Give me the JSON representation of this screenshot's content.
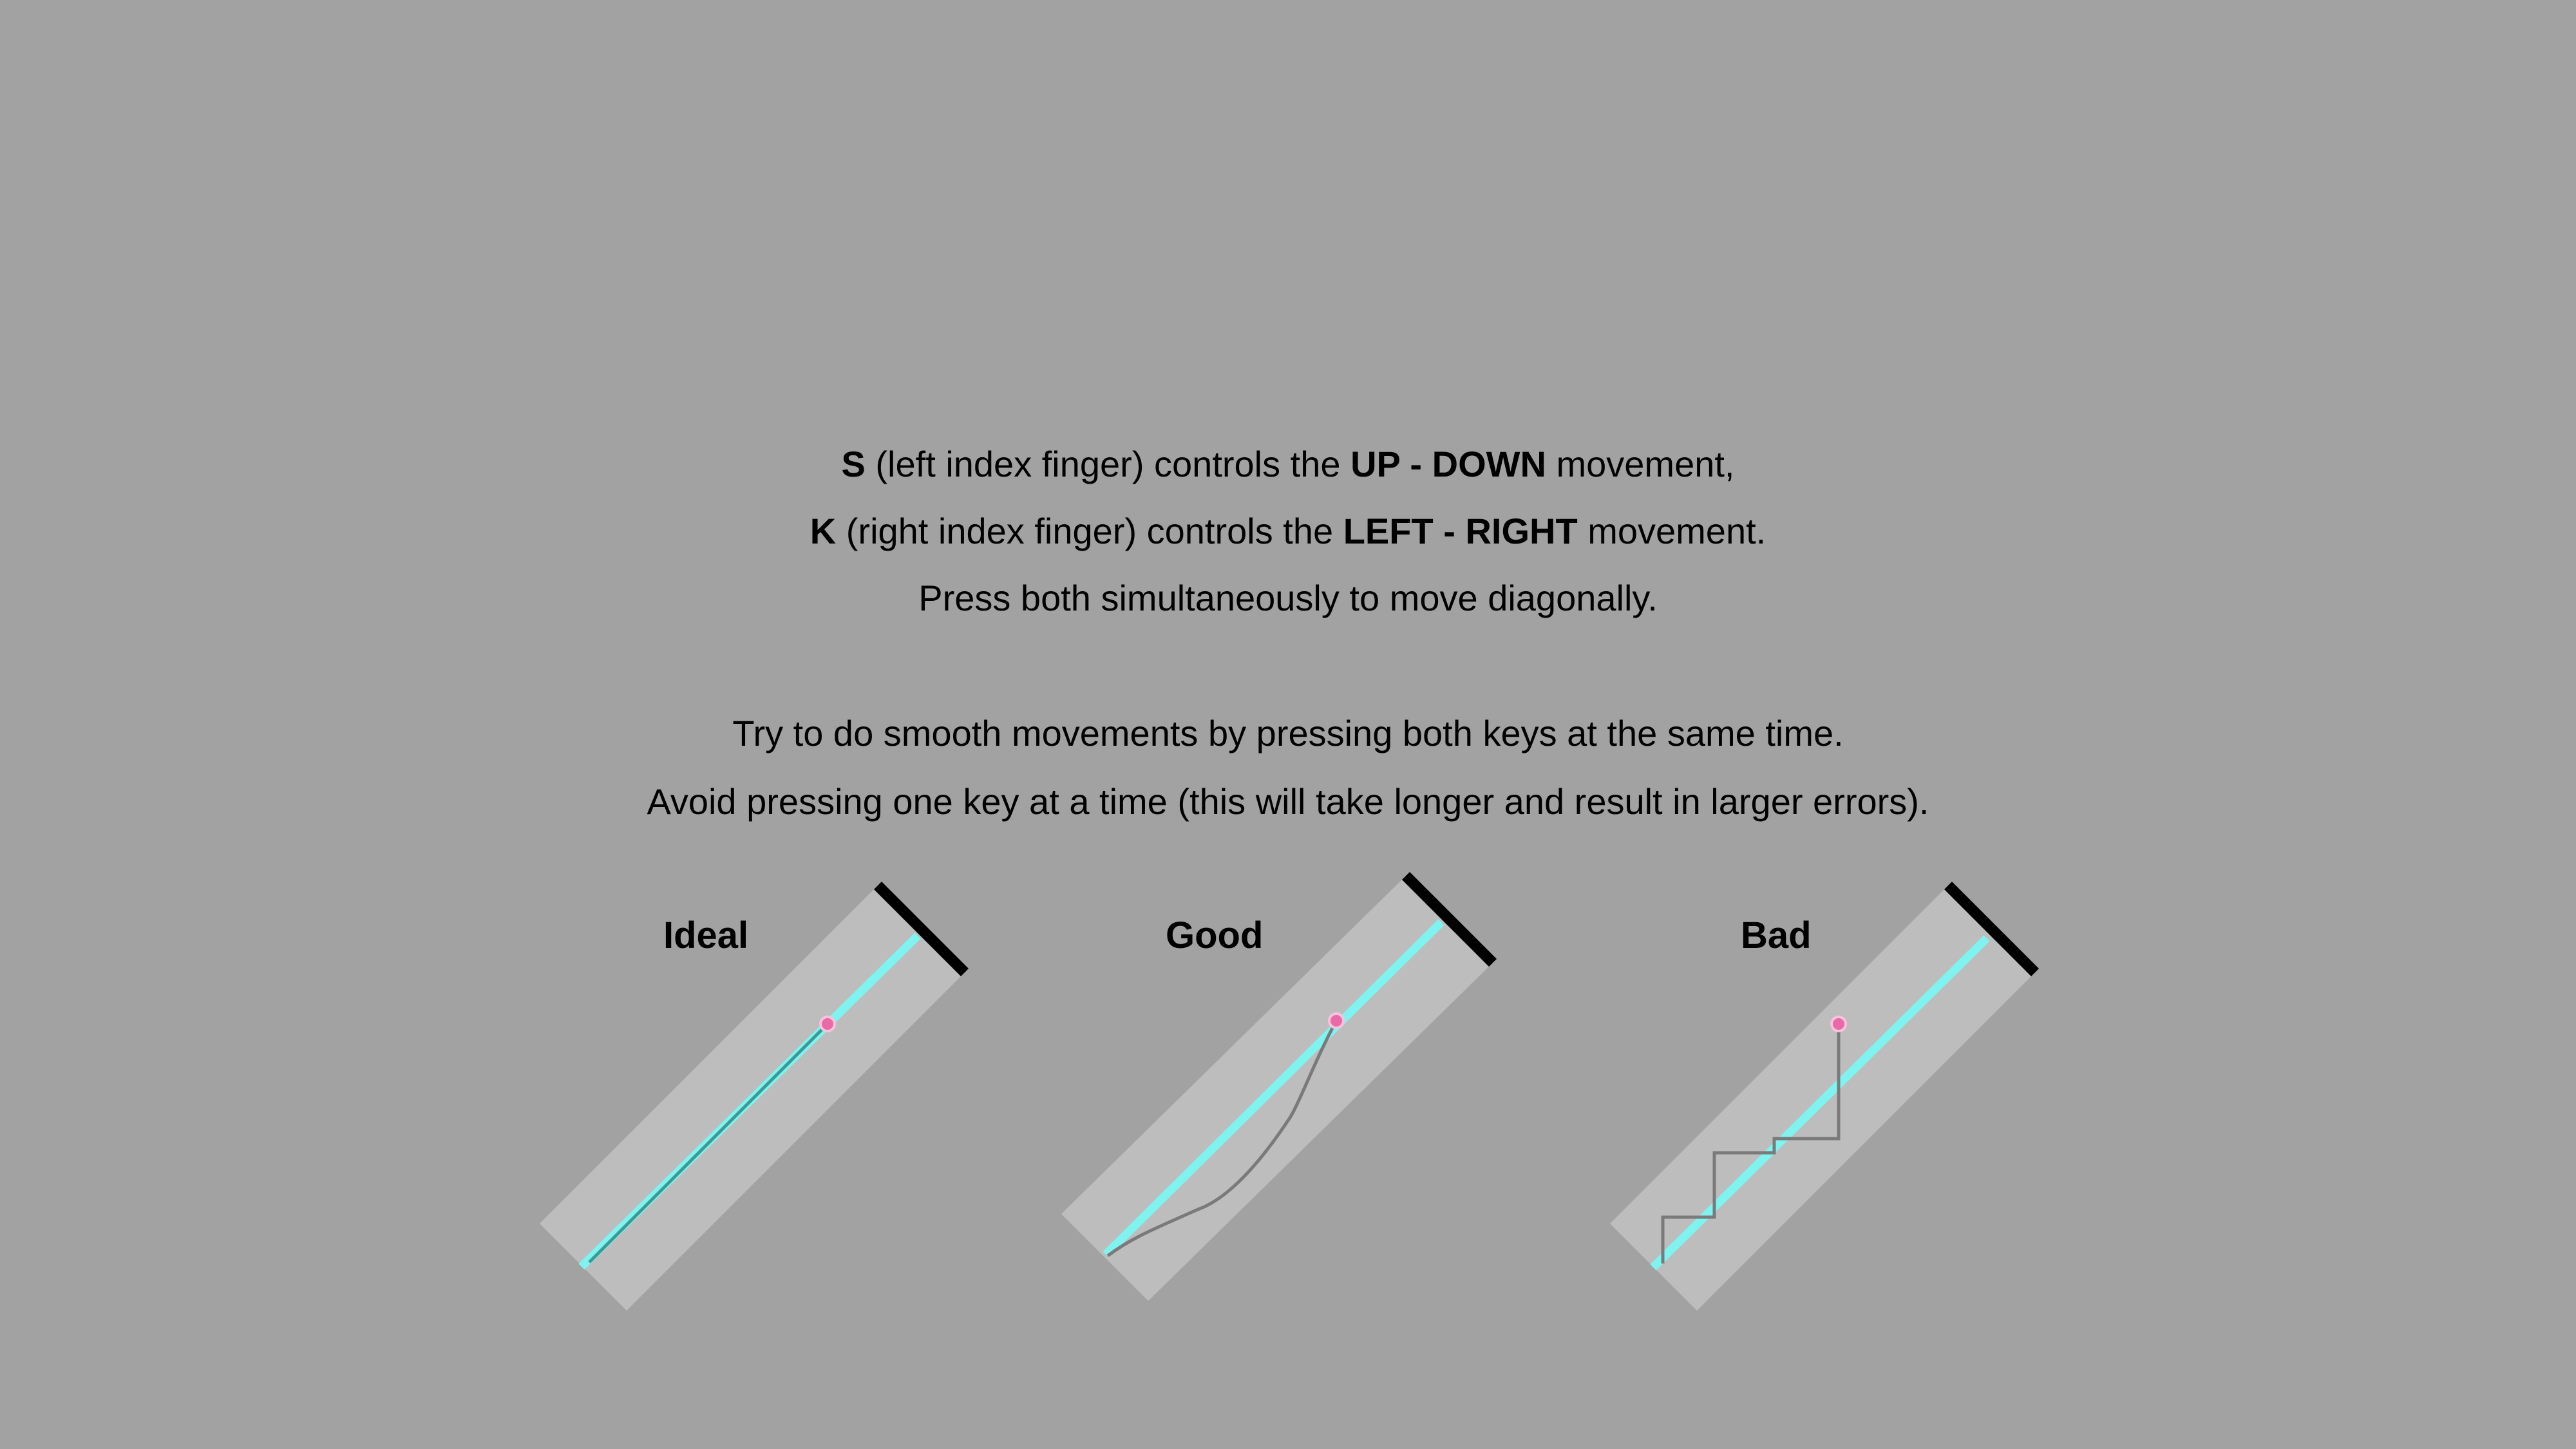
{
  "instructions": {
    "line1": {
      "key": "S",
      "middle": " (left index finger) controls the ",
      "axis": "UP - DOWN",
      "end": " movement,"
    },
    "line2": {
      "key": "K",
      "middle": " (right index finger) controls the ",
      "axis": "LEFT - RIGHT",
      "end": " movement."
    },
    "line3": "Press both simultaneously to move diagonally.",
    "line4": "Try to do smooth movements by pressing both keys at the same time.",
    "line5": "Avoid pressing one key at a time (this will take longer and result in larger errors)."
  },
  "examples": [
    {
      "label": "Ideal"
    },
    {
      "label": "Good"
    },
    {
      "label": "Bad"
    }
  ],
  "colors": {
    "background": "#a2a2a2",
    "track": "#bdbdbd",
    "target_line": "#7ff3f0",
    "finish_bar": "#000000",
    "cursor": "#e86aa7",
    "ideal_path": "#3b9a96",
    "user_path": "#7a7a7a"
  }
}
